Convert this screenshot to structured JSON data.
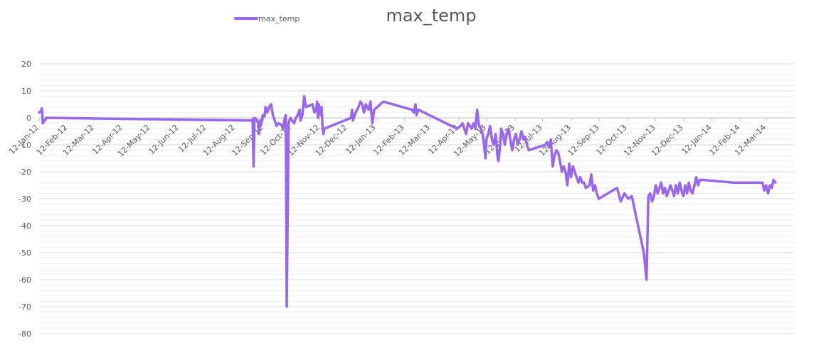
{
  "chart_data": {
    "type": "line",
    "title": "max_temp",
    "xlabel": "",
    "ylabel": "",
    "ylim": [
      -80,
      20
    ],
    "y_ticks": [
      20,
      10,
      0,
      -10,
      -20,
      -30,
      -40,
      -50,
      -60,
      -70,
      -80
    ],
    "x_tick_labels": [
      "12-Jan-12",
      "12-Feb-12",
      "12-Mar-12",
      "12-Apr-12",
      "12-May-12",
      "12-Jun-12",
      "12-Jul-12",
      "12-Aug-12",
      "12-Sep-12",
      "12-Oct-12",
      "12-Nov-12",
      "12-Dec-12",
      "12-Jan-13",
      "12-Feb-13",
      "12-Mar-13",
      "12-Apr-13",
      "12-May-13",
      "12-Jun-13",
      "12-Jul-13",
      "12-Aug-13",
      "12-Sep-13",
      "12-Oct-13",
      "12-Nov-13",
      "12-Dec-13",
      "12-Jan-14",
      "12-Feb-14",
      "12-Mar-14"
    ],
    "grid": true,
    "legend": "top-left",
    "series": [
      {
        "name": "max_temp",
        "color": "#9966ee",
        "points": [
          [
            "2012-01-12",
            2
          ],
          [
            "2012-01-14",
            2.5
          ],
          [
            "2012-01-15",
            3.5
          ],
          [
            "2012-01-16",
            -2
          ],
          [
            "2012-01-18",
            -1
          ],
          [
            "2012-01-20",
            0
          ],
          [
            "2012-08-30",
            -1
          ],
          [
            "2012-08-31",
            -0.5
          ],
          [
            "2012-09-01",
            -18
          ],
          [
            "2012-09-02",
            0
          ],
          [
            "2012-09-04",
            -0.5
          ],
          [
            "2012-09-06",
            -2
          ],
          [
            "2012-09-07",
            -6
          ],
          [
            "2012-09-08",
            -1
          ],
          [
            "2012-09-09",
            -3
          ],
          [
            "2012-09-11",
            1
          ],
          [
            "2012-09-13",
            0.5
          ],
          [
            "2012-09-14",
            4
          ],
          [
            "2012-09-16",
            2
          ],
          [
            "2012-09-18",
            4
          ],
          [
            "2012-09-20",
            5
          ],
          [
            "2012-09-22",
            1
          ],
          [
            "2012-09-24",
            -1
          ],
          [
            "2012-09-26",
            -3
          ],
          [
            "2012-09-28",
            -2
          ],
          [
            "2012-10-01",
            -2.5
          ],
          [
            "2012-10-03",
            -4
          ],
          [
            "2012-10-05",
            0
          ],
          [
            "2012-10-06",
            1
          ],
          [
            "2012-10-07",
            -70
          ],
          [
            "2012-10-09",
            -2
          ],
          [
            "2012-10-11",
            0
          ],
          [
            "2012-10-13",
            -1
          ],
          [
            "2012-10-15",
            -2
          ],
          [
            "2012-10-17",
            0
          ],
          [
            "2012-10-19",
            1
          ],
          [
            "2012-10-21",
            3
          ],
          [
            "2012-10-22",
            -1
          ],
          [
            "2012-10-24",
            1
          ],
          [
            "2012-10-26",
            8
          ],
          [
            "2012-10-28",
            4
          ],
          [
            "2012-11-04",
            5
          ],
          [
            "2012-11-06",
            2
          ],
          [
            "2012-11-08",
            3
          ],
          [
            "2012-11-09",
            6
          ],
          [
            "2012-11-10",
            0
          ],
          [
            "2012-11-11",
            5
          ],
          [
            "2012-11-13",
            1
          ],
          [
            "2012-11-14",
            4
          ],
          [
            "2012-11-15",
            -4
          ],
          [
            "2012-11-16",
            -6
          ],
          [
            "2012-11-17",
            -4
          ],
          [
            "2012-12-16",
            0
          ],
          [
            "2012-12-17",
            3
          ],
          [
            "2012-12-18",
            -1
          ],
          [
            "2012-12-21",
            2
          ],
          [
            "2012-12-24",
            4
          ],
          [
            "2012-12-26",
            6
          ],
          [
            "2012-12-28",
            5
          ],
          [
            "2012-12-30",
            2
          ],
          [
            "2013-01-01",
            5
          ],
          [
            "2013-01-04",
            3
          ],
          [
            "2013-01-06",
            6
          ],
          [
            "2013-01-08",
            -2
          ],
          [
            "2013-01-10",
            3
          ],
          [
            "2013-01-20",
            6
          ],
          [
            "2013-02-20",
            3
          ],
          [
            "2013-02-22",
            2
          ],
          [
            "2013-02-24",
            5
          ],
          [
            "2013-02-25",
            1
          ],
          [
            "2013-02-27",
            3
          ],
          [
            "2013-04-10",
            -4
          ],
          [
            "2013-04-14",
            -3
          ],
          [
            "2013-04-16",
            -2
          ],
          [
            "2013-04-18",
            -4
          ],
          [
            "2013-04-20",
            -6
          ],
          [
            "2013-04-22",
            -2
          ],
          [
            "2013-04-24",
            -3
          ],
          [
            "2013-04-26",
            -4
          ],
          [
            "2013-04-28",
            -2
          ],
          [
            "2013-04-30",
            -4
          ],
          [
            "2013-05-02",
            3
          ],
          [
            "2013-05-04",
            -3
          ],
          [
            "2013-05-06",
            -4
          ],
          [
            "2013-05-08",
            -6
          ],
          [
            "2013-05-10",
            -12
          ],
          [
            "2013-05-11",
            -15
          ],
          [
            "2013-05-12",
            -8
          ],
          [
            "2013-05-14",
            -6
          ],
          [
            "2013-05-16",
            -3
          ],
          [
            "2013-05-18",
            -8
          ],
          [
            "2013-05-20",
            -10
          ],
          [
            "2013-05-22",
            -6
          ],
          [
            "2013-05-24",
            -14
          ],
          [
            "2013-05-25",
            -16
          ],
          [
            "2013-05-27",
            -10
          ],
          [
            "2013-05-28",
            -4
          ],
          [
            "2013-05-30",
            -6
          ],
          [
            "2013-06-01",
            -10
          ],
          [
            "2013-06-03",
            -6
          ],
          [
            "2013-06-05",
            -4
          ],
          [
            "2013-06-07",
            -8
          ],
          [
            "2013-06-09",
            -12
          ],
          [
            "2013-06-11",
            -8
          ],
          [
            "2013-06-13",
            -6
          ],
          [
            "2013-06-15",
            -10
          ],
          [
            "2013-06-17",
            -8
          ],
          [
            "2013-06-19",
            -5
          ],
          [
            "2013-06-20",
            -6
          ],
          [
            "2013-06-21",
            -8
          ],
          [
            "2013-06-23",
            -7
          ],
          [
            "2013-06-25",
            -10
          ],
          [
            "2013-06-27",
            -12
          ],
          [
            "2013-07-15",
            -10
          ],
          [
            "2013-07-17",
            -9
          ],
          [
            "2013-07-19",
            -11
          ],
          [
            "2013-07-21",
            -8
          ],
          [
            "2013-07-23",
            -18
          ],
          [
            "2013-07-25",
            -14
          ],
          [
            "2013-07-27",
            -12
          ],
          [
            "2013-07-29",
            -13
          ],
          [
            "2013-07-31",
            -16
          ],
          [
            "2013-08-02",
            -20
          ],
          [
            "2013-08-04",
            -18
          ],
          [
            "2013-08-06",
            -20
          ],
          [
            "2013-08-08",
            -25
          ],
          [
            "2013-08-10",
            -17
          ],
          [
            "2013-08-12",
            -22
          ],
          [
            "2013-08-14",
            -18
          ],
          [
            "2013-08-16",
            -20
          ],
          [
            "2013-08-18",
            -22
          ],
          [
            "2013-08-20",
            -24
          ],
          [
            "2013-08-22",
            -22
          ],
          [
            "2013-08-24",
            -24
          ],
          [
            "2013-08-26",
            -24
          ],
          [
            "2013-08-28",
            -26
          ],
          [
            "2013-09-01",
            -25
          ],
          [
            "2013-09-03",
            -21
          ],
          [
            "2013-09-05",
            -27
          ],
          [
            "2013-09-07",
            -25
          ],
          [
            "2013-09-09",
            -28
          ],
          [
            "2013-09-11",
            -30
          ],
          [
            "2013-10-01",
            -26
          ],
          [
            "2013-10-05",
            -31
          ],
          [
            "2013-10-09",
            -28
          ],
          [
            "2013-10-13",
            -30
          ],
          [
            "2013-10-17",
            -29
          ],
          [
            "2013-10-30",
            -50
          ],
          [
            "2013-11-02",
            -60
          ],
          [
            "2013-11-04",
            -29
          ],
          [
            "2013-11-06",
            -28
          ],
          [
            "2013-11-08",
            -31
          ],
          [
            "2013-11-10",
            -29
          ],
          [
            "2013-11-12",
            -25
          ],
          [
            "2013-11-14",
            -28
          ],
          [
            "2013-11-16",
            -26
          ],
          [
            "2013-11-18",
            -24
          ],
          [
            "2013-11-20",
            -28
          ],
          [
            "2013-11-22",
            -26
          ],
          [
            "2013-11-24",
            -29
          ],
          [
            "2013-11-26",
            -27
          ],
          [
            "2013-11-28",
            -25
          ],
          [
            "2013-11-30",
            -27
          ],
          [
            "2013-12-02",
            -29
          ],
          [
            "2013-12-04",
            -25
          ],
          [
            "2013-12-06",
            -28
          ],
          [
            "2013-12-08",
            -24
          ],
          [
            "2013-12-10",
            -27
          ],
          [
            "2013-12-12",
            -29
          ],
          [
            "2013-12-14",
            -25
          ],
          [
            "2013-12-16",
            -28
          ],
          [
            "2013-12-18",
            -24
          ],
          [
            "2013-12-20",
            -27
          ],
          [
            "2013-12-22",
            -28
          ],
          [
            "2013-12-24",
            -25
          ],
          [
            "2013-12-26",
            -22
          ],
          [
            "2013-12-28",
            -25
          ],
          [
            "2013-12-30",
            -23
          ],
          [
            "2014-01-02",
            -23
          ],
          [
            "2014-02-04",
            -24
          ],
          [
            "2014-03-08",
            -24
          ],
          [
            "2014-03-10",
            -27
          ],
          [
            "2014-03-12",
            -25
          ],
          [
            "2014-03-14",
            -28
          ],
          [
            "2014-03-16",
            -25
          ],
          [
            "2014-03-18",
            -26
          ],
          [
            "2014-03-20",
            -23
          ],
          [
            "2014-03-22",
            -24
          ]
        ]
      }
    ]
  }
}
